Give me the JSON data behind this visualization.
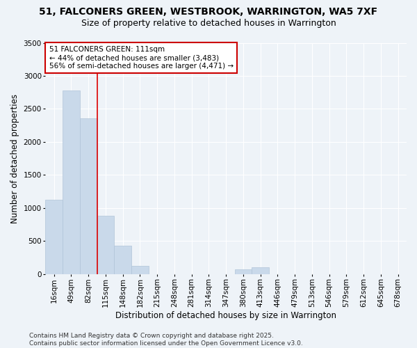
{
  "title": "51, FALCONERS GREEN, WESTBROOK, WARRINGTON, WA5 7XF",
  "subtitle": "Size of property relative to detached houses in Warrington",
  "xlabel": "Distribution of detached houses by size in Warrington",
  "ylabel": "Number of detached properties",
  "bar_color": "#c9d9ea",
  "bar_edge_color": "#b0c4d8",
  "bg_color": "#eef3f8",
  "grid_color": "#ffffff",
  "categories": [
    "16sqm",
    "49sqm",
    "82sqm",
    "115sqm",
    "148sqm",
    "182sqm",
    "215sqm",
    "248sqm",
    "281sqm",
    "314sqm",
    "347sqm",
    "380sqm",
    "413sqm",
    "446sqm",
    "479sqm",
    "513sqm",
    "546sqm",
    "579sqm",
    "612sqm",
    "645sqm",
    "678sqm"
  ],
  "values": [
    1120,
    2780,
    2360,
    880,
    430,
    120,
    0,
    0,
    0,
    0,
    0,
    70,
    100,
    0,
    0,
    0,
    0,
    0,
    0,
    0,
    0
  ],
  "ylim": [
    0,
    3500
  ],
  "yticks": [
    0,
    500,
    1000,
    1500,
    2000,
    2500,
    3000,
    3500
  ],
  "vline_x": 2.5,
  "vline_color": "#dd0000",
  "annotation_title": "51 FALCONERS GREEN: 111sqm",
  "annotation_line1": "← 44% of detached houses are smaller (3,483)",
  "annotation_line2": "56% of semi-detached houses are larger (4,471) →",
  "annotation_box_color": "#cc0000",
  "footer": "Contains HM Land Registry data © Crown copyright and database right 2025.\nContains public sector information licensed under the Open Government Licence v3.0.",
  "title_fontsize": 10,
  "subtitle_fontsize": 9,
  "annotation_fontsize": 7.5,
  "label_fontsize": 8.5,
  "tick_fontsize": 7.5,
  "footer_fontsize": 6.5
}
